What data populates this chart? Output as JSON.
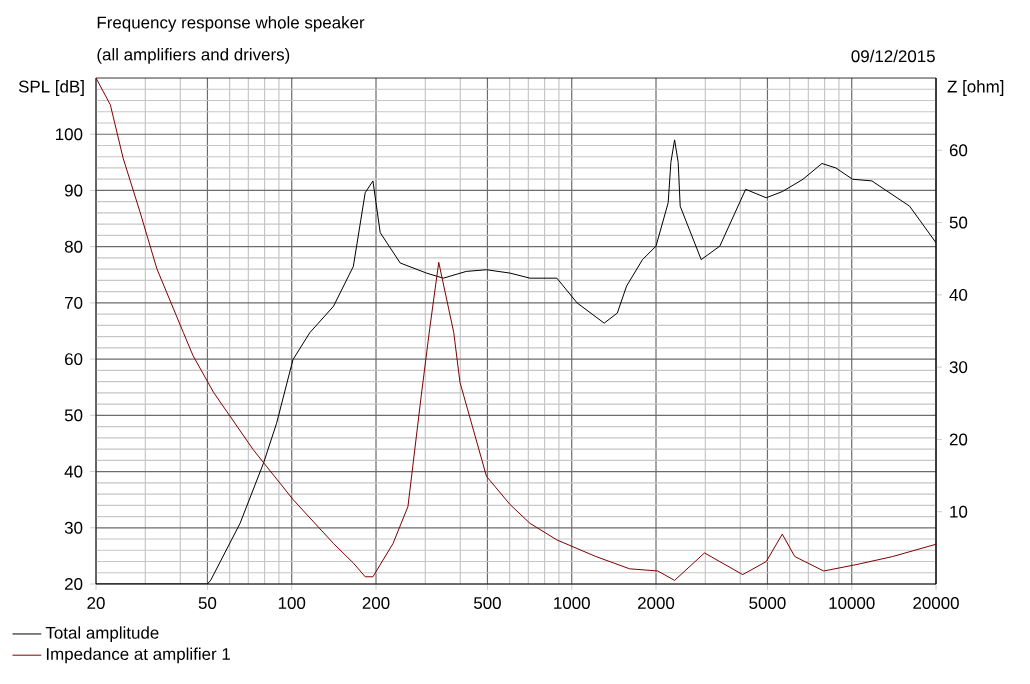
{
  "chart_data": {
    "type": "line",
    "title": "Frequency response whole speaker",
    "subtitle": "(all amplifiers and drivers)",
    "annotations": [
      "09/12/2015"
    ],
    "ylabel": "SPL [dB]",
    "y2label": "Z [ohm]",
    "log": "x",
    "grid": true,
    "legend": "bottom left",
    "xlim": [
      20,
      20000
    ],
    "xticks": [
      20,
      50,
      100,
      200,
      500,
      1000,
      2000,
      5000,
      10000,
      20000
    ],
    "ylim": [
      20,
      110
    ],
    "yticks": [
      20,
      30,
      40,
      50,
      60,
      70,
      80,
      90,
      100
    ],
    "y2lim": [
      0,
      70
    ],
    "y2ticks": [
      10,
      20,
      30,
      40,
      50,
      60
    ],
    "series": [
      {
        "name": "Total amplitude",
        "color": "#000000",
        "x": [
          20,
          50,
          51.4,
          65.4,
          79.3,
          88.3,
          101,
          116,
          141,
          166,
          183,
          195,
          207,
          244,
          303,
          348,
          420,
          496,
          602,
          709,
          885,
          1045,
          1306,
          1455,
          1570,
          1790,
          2000,
          2210,
          2260,
          2330,
          2400,
          2440,
          2900,
          3380,
          4180,
          4950,
          5650,
          6700,
          7830,
          8780,
          10060,
          11800,
          16100,
          20000
        ],
        "values": [
          20,
          20,
          20.7,
          30.8,
          41.5,
          48.6,
          59.9,
          64.7,
          69.4,
          76.5,
          89.6,
          91.7,
          82.5,
          77.1,
          75.3,
          74.4,
          75.6,
          75.9,
          75.3,
          74.4,
          74.4,
          70.0,
          66.4,
          68.2,
          73.0,
          77.7,
          80.1,
          87.8,
          95,
          99,
          95,
          87.2,
          77.7,
          80.1,
          90.2,
          88.7,
          89.8,
          92.0,
          94.8,
          94.0,
          92.0,
          91.7,
          87.2,
          80.7
        ]
      },
      {
        "name": "Impedance at amplifier 1",
        "color": "#800000",
        "axis": "y2",
        "x": [
          20,
          22.5,
          25,
          28.7,
          33,
          41,
          44.4,
          52.6,
          72.8,
          101,
          141,
          166,
          183,
          195,
          230,
          260,
          290,
          311,
          335,
          379,
          399,
          496,
          602,
          709,
          885,
          1220,
          1610,
          2030,
          2330,
          2980,
          4080,
          4950,
          5650,
          6260,
          7940,
          10430,
          14000,
          20000
        ],
        "values": [
          70,
          66.3,
          58.9,
          51.5,
          43.6,
          34.8,
          31.6,
          26.5,
          18.6,
          11.7,
          5.6,
          2.9,
          1.0,
          1.0,
          5.6,
          10.7,
          26.0,
          35.3,
          44.5,
          34.8,
          27.9,
          14.9,
          11.0,
          8.4,
          6.1,
          3.8,
          2.1,
          1.8,
          0.5,
          4.3,
          1.3,
          3.1,
          6.9,
          3.8,
          1.8,
          2.7,
          3.8,
          5.5
        ]
      }
    ]
  }
}
